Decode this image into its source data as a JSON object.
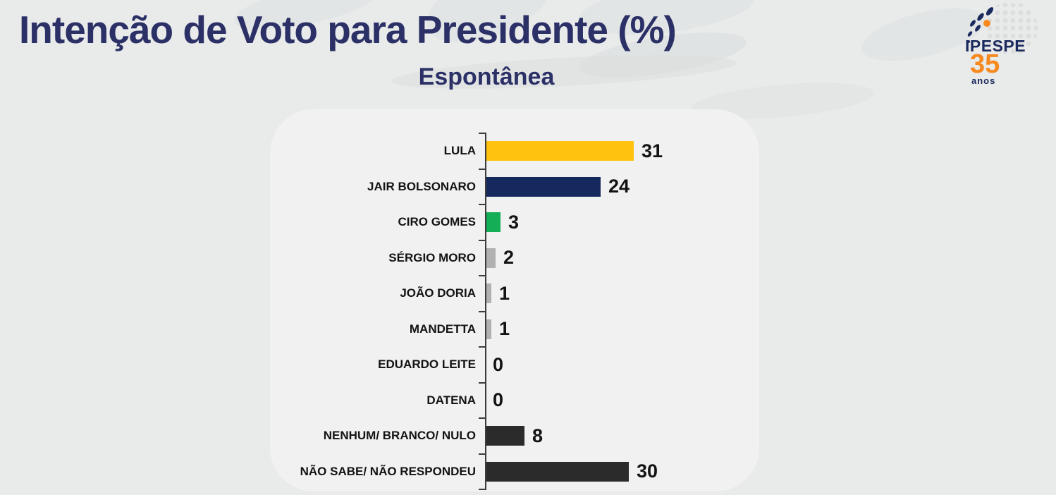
{
  "header": {
    "title": "Intenção de Voto para Presidente (%)",
    "subtitle": "Espontânea"
  },
  "logo": {
    "name": "IPESPE",
    "years": "35",
    "unit": "anos"
  },
  "chart_data": {
    "type": "bar",
    "orientation": "horizontal",
    "title": "Intenção de Voto para Presidente (%)",
    "subtitle": "Espontânea",
    "unit": "%",
    "categories": [
      "LULA",
      "JAIR BOLSONARO",
      "CIRO GOMES",
      "SÉRGIO MORO",
      "JOÃO DORIA",
      "MANDETTA",
      "EDUARDO LEITE",
      "DATENA",
      "NENHUM/ BRANCO/ NULO",
      "NÃO SABE/ NÃO RESPONDEU"
    ],
    "values": [
      31,
      24,
      3,
      2,
      1,
      1,
      0,
      0,
      8,
      30
    ],
    "bar_colors": [
      "#ffc20e",
      "#16295f",
      "#13ae56",
      "#b1b1b1",
      "#b1b1b1",
      "#b1b1b1",
      "#b1b1b1",
      "#b1b1b1",
      "#2b2b2b",
      "#2b2b2b"
    ],
    "value_labels": true,
    "xlim": [
      0,
      31
    ],
    "grid": false,
    "legend": false
  },
  "colors": {
    "page_bg": "#e9eaea",
    "panel_bg": "#f1f1f1",
    "title_text": "#2b3066",
    "label_text": "#131313",
    "axis": "#3c3c3c",
    "logo_navy": "#1b2a5e",
    "logo_orange": "#f6891f"
  }
}
